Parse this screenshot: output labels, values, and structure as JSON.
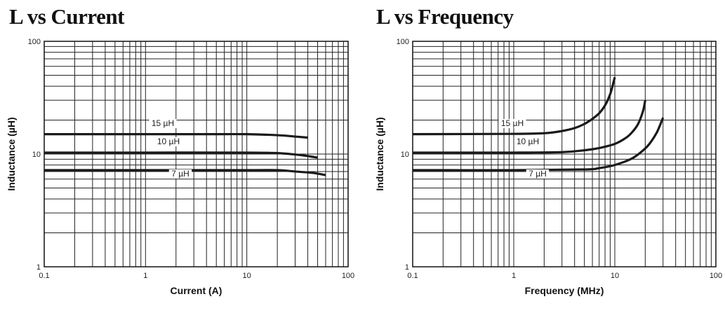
{
  "chart_data": [
    {
      "type": "line",
      "title": "L vs Current",
      "xlabel": "Current (A)",
      "ylabel": "Inductance (µH)",
      "xscale": "log",
      "yscale": "log",
      "xlim": [
        0.1,
        100
      ],
      "ylim": [
        1,
        100
      ],
      "xticks": [
        "0.1",
        "1",
        "10",
        "100"
      ],
      "yticks": [
        "1",
        "10",
        "100"
      ],
      "grid": true,
      "line_color": "#1a1a1a",
      "series": [
        {
          "name": "15 µH",
          "x": [
            0.1,
            1,
            5,
            10,
            20,
            30,
            40
          ],
          "y": [
            15,
            15,
            15,
            15,
            14.7,
            14.3,
            14
          ]
        },
        {
          "name": "10 µH",
          "x": [
            0.1,
            1,
            10,
            20,
            30,
            40,
            50
          ],
          "y": [
            10.3,
            10.3,
            10.3,
            10.2,
            9.9,
            9.6,
            9.3
          ]
        },
        {
          "name": "7 µH",
          "x": [
            0.1,
            1,
            10,
            20,
            30,
            45,
            60
          ],
          "y": [
            7.2,
            7.2,
            7.2,
            7.2,
            7.0,
            6.8,
            6.5
          ]
        }
      ]
    },
    {
      "type": "line",
      "title": "L vs Frequency",
      "xlabel": "Frequency (MHz)",
      "ylabel": "Inductance (µH)",
      "xscale": "log",
      "yscale": "log",
      "xlim": [
        0.1,
        100
      ],
      "ylim": [
        1,
        100
      ],
      "xticks": [
        "0.1",
        "1",
        "10",
        "100"
      ],
      "yticks": [
        "1",
        "10",
        "100"
      ],
      "grid": true,
      "line_color": "#1a1a1a",
      "series": [
        {
          "name": "15 µH",
          "x": [
            0.1,
            1,
            2,
            3,
            4,
            5,
            6,
            7,
            8,
            9,
            10
          ],
          "y": [
            15,
            15.1,
            15.3,
            16,
            17,
            18.5,
            20.5,
            23,
            27,
            34,
            48
          ]
        },
        {
          "name": "10 µH",
          "x": [
            0.1,
            1,
            3,
            5,
            7,
            10,
            13,
            15,
            17,
            19,
            20
          ],
          "y": [
            10.3,
            10.3,
            10.4,
            10.8,
            11.3,
            12.3,
            14,
            15.8,
            18.5,
            24,
            30
          ]
        },
        {
          "name": "7 µH",
          "x": [
            0.1,
            1,
            5,
            7,
            10,
            15,
            20,
            23,
            26,
            28,
            30
          ],
          "y": [
            7.2,
            7.2,
            7.3,
            7.5,
            8,
            9.2,
            11.2,
            13,
            15.5,
            18,
            21
          ]
        }
      ]
    }
  ]
}
